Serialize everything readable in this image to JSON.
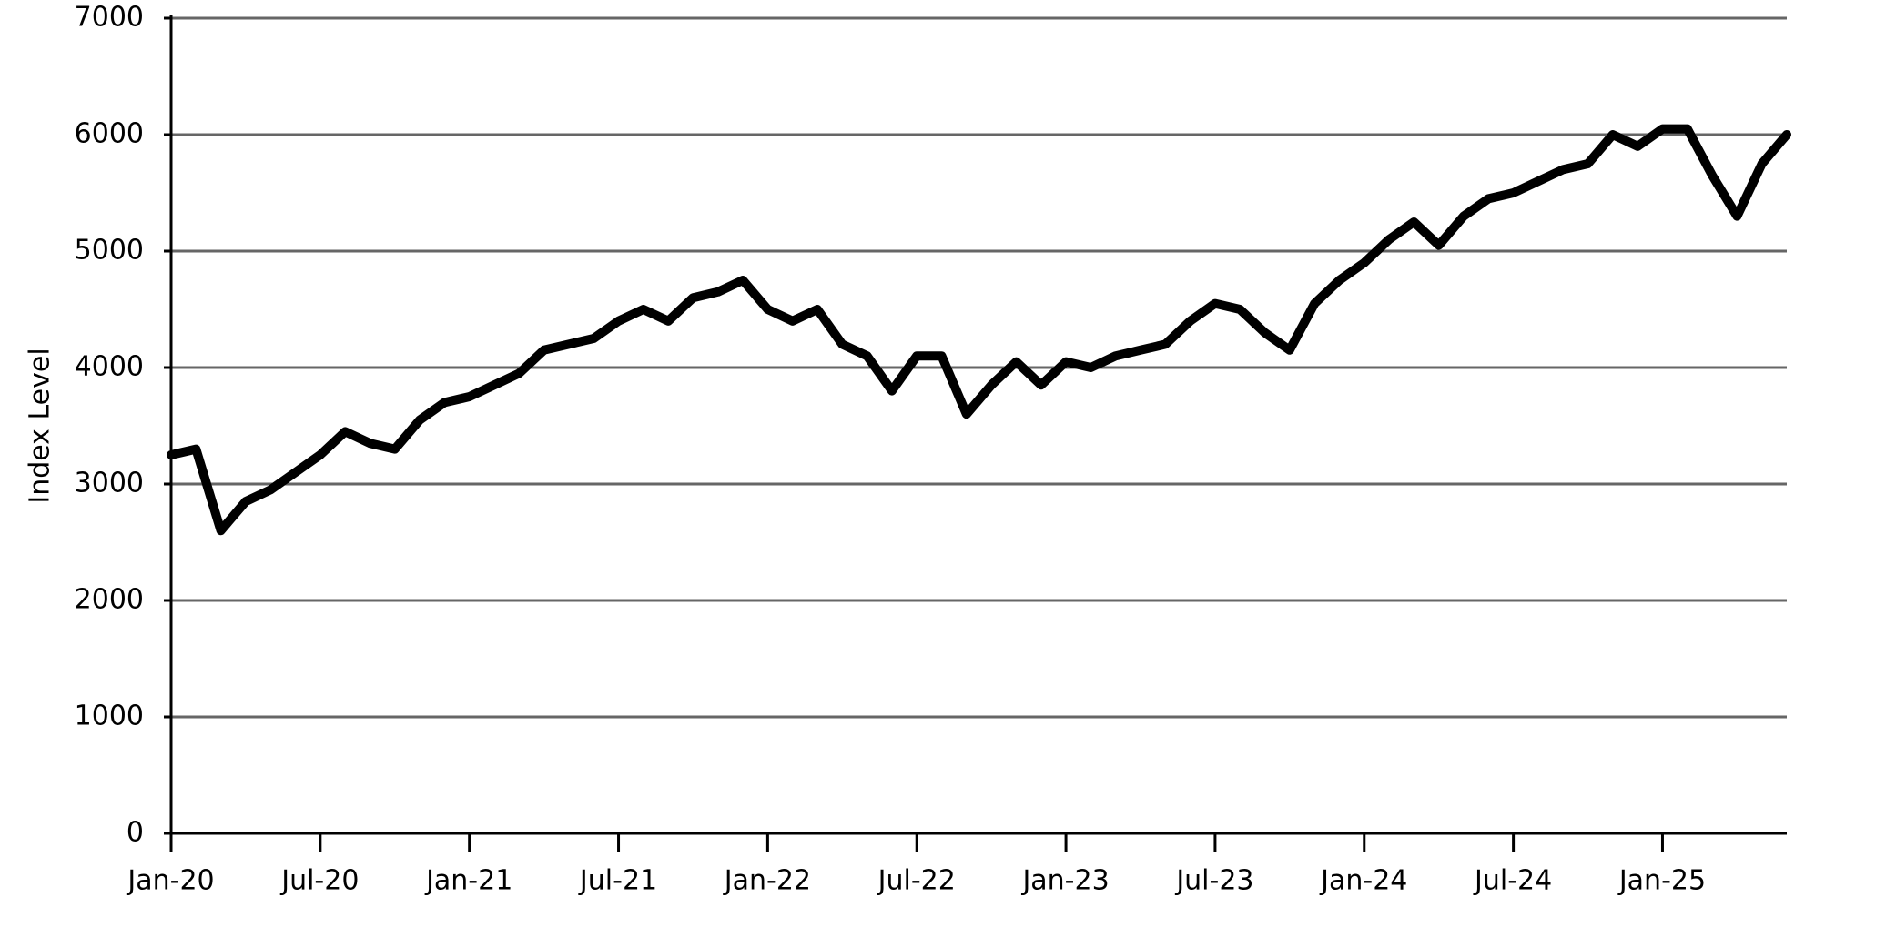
{
  "chart_data": {
    "type": "line",
    "y_label": "Index Level",
    "categories": [
      "Jan-20",
      null,
      null,
      null,
      null,
      null,
      "Jul-20",
      null,
      null,
      null,
      null,
      null,
      "Jan-21",
      null,
      null,
      null,
      null,
      null,
      "Jul-21",
      null,
      null,
      null,
      null,
      null,
      "Jan-22",
      null,
      null,
      null,
      null,
      null,
      "Jul-22",
      null,
      null,
      null,
      null,
      null,
      "Jan-23",
      null,
      null,
      null,
      null,
      null,
      "Jul-23",
      null,
      null,
      null,
      null,
      null,
      "Jan-24",
      null,
      null,
      null,
      null,
      null,
      "Jul-24",
      null,
      null,
      null,
      null,
      null,
      "Jan-25",
      null,
      null,
      null,
      null,
      null
    ],
    "values": [
      3250,
      3300,
      2600,
      2850,
      2950,
      3100,
      3250,
      3450,
      3350,
      3300,
      3550,
      3700,
      3750,
      3850,
      3950,
      4150,
      4200,
      4250,
      4400,
      4500,
      4400,
      4600,
      4650,
      4750,
      4500,
      4400,
      4500,
      4200,
      4100,
      3800,
      4100,
      4100,
      3600,
      3850,
      4050,
      3850,
      4050,
      4000,
      4100,
      4150,
      4200,
      4400,
      4550,
      4500,
      4300,
      4150,
      4550,
      4750,
      4900,
      5100,
      5250,
      5050,
      5300,
      5450,
      5500,
      5600,
      5700,
      5750,
      6000,
      5900,
      6050,
      6050,
      5650,
      5300,
      5750,
      6000
    ],
    "color": "#000000",
    "ylim": [
      0,
      7000
    ],
    "yticks": [
      0,
      1000,
      2000,
      3000,
      4000,
      5000,
      6000,
      7000
    ],
    "grid": true
  }
}
